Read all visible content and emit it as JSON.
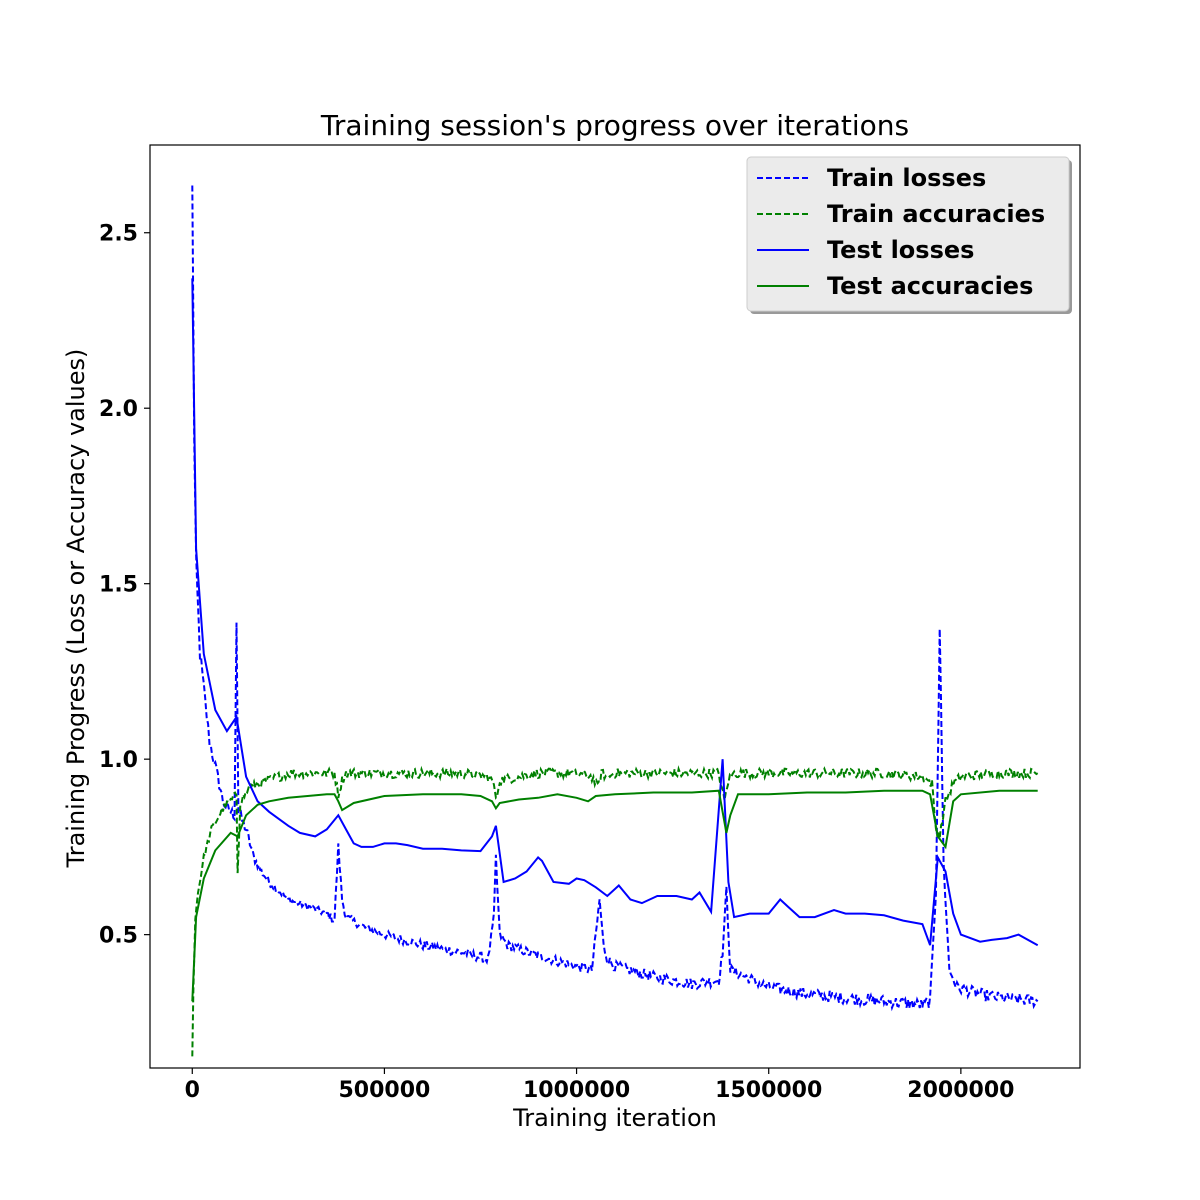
{
  "chart_data": {
    "type": "line",
    "title": "Training session's progress over iterations",
    "xlabel": "Training iteration",
    "ylabel": "Training Progress (Loss or Accuracy values)",
    "xlim": [
      -110000,
      2310000
    ],
    "ylim": [
      0.12,
      2.75
    ],
    "x_ticks": [
      0,
      500000,
      1000000,
      1500000,
      2000000
    ],
    "x_tick_labels": [
      "0",
      "500000",
      "1000000",
      "1500000",
      "2000000"
    ],
    "y_ticks": [
      0.5,
      1.0,
      1.5,
      2.0,
      2.5
    ],
    "y_tick_labels": [
      "0.5",
      "1.0",
      "1.5",
      "2.0",
      "2.5"
    ],
    "grid": false,
    "legend_position": "top-right",
    "series": [
      {
        "name": "Train losses",
        "color": "#0000ff",
        "style": "dashed",
        "x": [
          0,
          2000,
          5000,
          10000,
          20000,
          30000,
          45000,
          60000,
          80000,
          90000,
          100000,
          110000,
          115000,
          120000,
          140000,
          160000,
          180000,
          200000,
          250000,
          300000,
          350000,
          370000,
          380000,
          390000,
          400000,
          450000,
          500000,
          600000,
          700000,
          770000,
          785000,
          790000,
          800000,
          820000,
          900000,
          1000000,
          1040000,
          1060000,
          1070000,
          1080000,
          1100000,
          1200000,
          1300000,
          1370000,
          1380000,
          1390000,
          1400000,
          1500000,
          1600000,
          1700000,
          1800000,
          1900000,
          1920000,
          1935000,
          1945000,
          1955000,
          1970000,
          1990000,
          2050000,
          2100000,
          2200000
        ],
        "y": [
          2.62,
          2.4,
          1.9,
          1.55,
          1.3,
          1.2,
          1.05,
          0.98,
          0.88,
          0.86,
          0.85,
          0.84,
          1.4,
          0.85,
          0.8,
          0.72,
          0.68,
          0.65,
          0.6,
          0.58,
          0.56,
          0.54,
          0.75,
          0.6,
          0.55,
          0.52,
          0.5,
          0.47,
          0.45,
          0.43,
          0.55,
          0.72,
          0.5,
          0.47,
          0.44,
          0.41,
          0.4,
          0.6,
          0.47,
          0.43,
          0.41,
          0.38,
          0.36,
          0.37,
          0.45,
          0.63,
          0.4,
          0.35,
          0.33,
          0.32,
          0.31,
          0.3,
          0.31,
          0.62,
          1.38,
          0.7,
          0.4,
          0.35,
          0.33,
          0.32,
          0.31
        ]
      },
      {
        "name": "Train accuracies",
        "color": "#008000",
        "style": "dashed",
        "x": [
          0,
          3000,
          8000,
          15000,
          30000,
          50000,
          80000,
          100000,
          115000,
          118000,
          125000,
          150000,
          200000,
          250000,
          300000,
          370000,
          380000,
          390000,
          400000,
          500000,
          600000,
          700000,
          770000,
          785000,
          790000,
          800000,
          900000,
          1000000,
          1040000,
          1055000,
          1065000,
          1080000,
          1100000,
          1200000,
          1300000,
          1370000,
          1385000,
          1395000,
          1410000,
          1500000,
          1600000,
          1700000,
          1800000,
          1900000,
          1925000,
          1935000,
          1945000,
          1960000,
          1980000,
          2000000,
          2100000,
          2200000
        ],
        "y": [
          0.15,
          0.35,
          0.55,
          0.62,
          0.72,
          0.8,
          0.86,
          0.88,
          0.9,
          0.68,
          0.88,
          0.92,
          0.94,
          0.96,
          0.96,
          0.96,
          0.9,
          0.94,
          0.96,
          0.96,
          0.96,
          0.96,
          0.95,
          0.93,
          0.88,
          0.94,
          0.96,
          0.96,
          0.95,
          0.92,
          0.96,
          0.95,
          0.96,
          0.96,
          0.96,
          0.96,
          0.88,
          0.94,
          0.96,
          0.96,
          0.96,
          0.96,
          0.96,
          0.95,
          0.93,
          0.8,
          0.78,
          0.88,
          0.93,
          0.95,
          0.96,
          0.96
        ]
      },
      {
        "name": "Test losses",
        "color": "#0000ff",
        "style": "solid",
        "x": [
          0,
          10000,
          30000,
          60000,
          90000,
          115000,
          140000,
          170000,
          200000,
          250000,
          280000,
          320000,
          350000,
          380000,
          400000,
          420000,
          440000,
          470000,
          500000,
          530000,
          560000,
          600000,
          650000,
          700000,
          750000,
          780000,
          790000,
          810000,
          840000,
          870000,
          900000,
          910000,
          940000,
          980000,
          1000000,
          1020000,
          1050000,
          1080000,
          1110000,
          1140000,
          1170000,
          1210000,
          1260000,
          1300000,
          1320000,
          1350000,
          1380000,
          1395000,
          1410000,
          1450000,
          1500000,
          1530000,
          1550000,
          1580000,
          1620000,
          1670000,
          1700000,
          1750000,
          1800000,
          1850000,
          1900000,
          1920000,
          1940000,
          1960000,
          1980000,
          2000000,
          2050000,
          2080000,
          2120000,
          2150000,
          2200000
        ],
        "y": [
          2.37,
          1.6,
          1.3,
          1.14,
          1.08,
          1.12,
          0.95,
          0.88,
          0.85,
          0.81,
          0.79,
          0.78,
          0.8,
          0.84,
          0.8,
          0.76,
          0.75,
          0.75,
          0.76,
          0.76,
          0.755,
          0.745,
          0.745,
          0.74,
          0.738,
          0.78,
          0.81,
          0.65,
          0.66,
          0.68,
          0.72,
          0.71,
          0.65,
          0.645,
          0.66,
          0.655,
          0.635,
          0.61,
          0.64,
          0.6,
          0.59,
          0.61,
          0.61,
          0.6,
          0.62,
          0.565,
          1.0,
          0.65,
          0.55,
          0.56,
          0.56,
          0.6,
          0.58,
          0.55,
          0.55,
          0.57,
          0.56,
          0.56,
          0.555,
          0.54,
          0.53,
          0.47,
          0.72,
          0.68,
          0.56,
          0.5,
          0.48,
          0.485,
          0.49,
          0.5,
          0.47
        ]
      },
      {
        "name": "Test accuracies",
        "color": "#008000",
        "style": "solid",
        "x": [
          0,
          10000,
          30000,
          60000,
          100000,
          118000,
          140000,
          170000,
          200000,
          250000,
          300000,
          350000,
          370000,
          380000,
          390000,
          420000,
          500000,
          600000,
          700000,
          750000,
          780000,
          790000,
          800000,
          850000,
          900000,
          950000,
          1000000,
          1030000,
          1050000,
          1100000,
          1200000,
          1300000,
          1370000,
          1390000,
          1400000,
          1420000,
          1500000,
          1600000,
          1700000,
          1800000,
          1900000,
          1920000,
          1940000,
          1960000,
          1980000,
          2000000,
          2100000,
          2200000
        ],
        "y": [
          0.31,
          0.55,
          0.66,
          0.74,
          0.79,
          0.78,
          0.84,
          0.87,
          0.88,
          0.89,
          0.895,
          0.9,
          0.9,
          0.88,
          0.855,
          0.875,
          0.895,
          0.9,
          0.9,
          0.895,
          0.88,
          0.86,
          0.875,
          0.885,
          0.89,
          0.9,
          0.89,
          0.88,
          0.895,
          0.9,
          0.905,
          0.905,
          0.91,
          0.79,
          0.84,
          0.9,
          0.9,
          0.905,
          0.905,
          0.91,
          0.91,
          0.9,
          0.78,
          0.75,
          0.88,
          0.9,
          0.91,
          0.91
        ]
      }
    ]
  }
}
